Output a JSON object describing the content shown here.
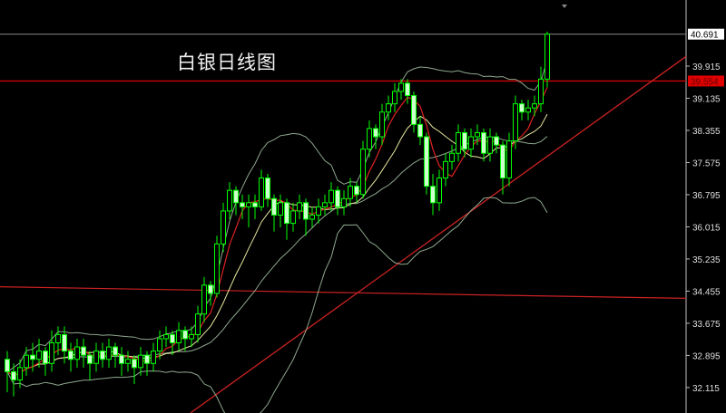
{
  "chart_data": {
    "type": "candlestick",
    "title": "白银日线图",
    "y_ticks": [
      "39.915",
      "39.135",
      "38.355",
      "37.575",
      "36.795",
      "36.015",
      "35.235",
      "34.455",
      "33.675",
      "32.895",
      "32.115"
    ],
    "ylim": [
      31.9,
      40.75
    ],
    "current_price_label": "40.691",
    "current_price": 40.691,
    "resistance_label": "39.554",
    "resistance_price": 39.554,
    "resistance_color": "#cc0000",
    "up_color": "#00ff00",
    "down_fill": "#ccffcc",
    "ma_fast_color": "#dd2222",
    "ma_slow_color": "#e8e8a0",
    "bands_color": "#8fa88f",
    "support_line": {
      "from_price": 34.56,
      "to_price": 34.28,
      "color": "#cc2222"
    },
    "trend_line": {
      "from_price": 31.5,
      "to_price": 40.15,
      "color": "#cc2222"
    },
    "candles": [
      [
        32.8,
        33.0,
        32.0,
        32.5
      ],
      [
        32.5,
        32.7,
        31.9,
        32.3
      ],
      [
        32.3,
        32.8,
        32.1,
        32.6
      ],
      [
        32.6,
        33.1,
        32.4,
        32.9
      ],
      [
        32.9,
        33.2,
        32.5,
        32.8
      ],
      [
        32.8,
        33.3,
        32.6,
        33.0
      ],
      [
        33.0,
        33.1,
        32.4,
        32.7
      ],
      [
        32.7,
        33.5,
        32.5,
        33.2
      ],
      [
        33.2,
        33.6,
        32.9,
        33.4
      ],
      [
        33.4,
        33.6,
        32.7,
        33.0
      ],
      [
        33.0,
        33.2,
        32.5,
        32.8
      ],
      [
        32.8,
        33.3,
        32.6,
        33.1
      ],
      [
        33.1,
        33.3,
        32.6,
        32.9
      ],
      [
        32.9,
        33.0,
        32.3,
        32.7
      ],
      [
        32.7,
        33.2,
        32.5,
        33.0
      ],
      [
        33.0,
        33.2,
        32.6,
        32.8
      ],
      [
        32.8,
        33.3,
        32.6,
        33.1
      ],
      [
        33.1,
        33.2,
        32.6,
        32.9
      ],
      [
        32.9,
        33.1,
        32.4,
        32.7
      ],
      [
        32.7,
        33.0,
        32.5,
        32.8
      ],
      [
        32.8,
        32.9,
        32.2,
        32.6
      ],
      [
        32.6,
        33.1,
        32.4,
        32.9
      ],
      [
        32.9,
        33.0,
        32.4,
        32.7
      ],
      [
        32.7,
        33.2,
        32.5,
        33.0
      ],
      [
        33.0,
        33.5,
        32.8,
        33.3
      ],
      [
        33.3,
        33.6,
        33.1,
        33.4
      ],
      [
        33.4,
        33.5,
        32.9,
        33.2
      ],
      [
        33.2,
        33.7,
        33.0,
        33.5
      ],
      [
        33.5,
        33.6,
        33.0,
        33.3
      ],
      [
        33.3,
        33.6,
        33.1,
        33.4
      ],
      [
        33.4,
        34.1,
        33.2,
        33.9
      ],
      [
        33.9,
        34.8,
        33.7,
        34.6
      ],
      [
        34.6,
        34.7,
        34.1,
        34.4
      ],
      [
        34.4,
        35.8,
        34.3,
        35.6
      ],
      [
        35.6,
        36.6,
        35.4,
        36.4
      ],
      [
        36.4,
        37.1,
        36.2,
        36.9
      ],
      [
        36.9,
        37.0,
        36.3,
        36.6
      ],
      [
        36.6,
        36.8,
        36.2,
        36.5
      ],
      [
        36.5,
        36.8,
        36.0,
        36.6
      ],
      [
        36.6,
        36.8,
        36.2,
        36.5
      ],
      [
        36.5,
        37.4,
        36.4,
        37.2
      ],
      [
        37.2,
        37.3,
        36.5,
        36.7
      ],
      [
        36.7,
        36.8,
        35.9,
        36.3
      ],
      [
        36.3,
        36.8,
        36.0,
        36.6
      ],
      [
        36.6,
        36.7,
        35.7,
        36.1
      ],
      [
        36.1,
        36.6,
        35.9,
        36.4
      ],
      [
        36.4,
        36.8,
        36.2,
        36.6
      ],
      [
        36.6,
        36.7,
        35.8,
        36.2
      ],
      [
        36.2,
        36.5,
        36.0,
        36.3
      ],
      [
        36.3,
        36.7,
        36.1,
        36.5
      ],
      [
        36.5,
        36.8,
        36.3,
        36.6
      ],
      [
        36.6,
        37.1,
        36.4,
        36.9
      ],
      [
        36.9,
        37.0,
        36.3,
        36.5
      ],
      [
        36.5,
        36.9,
        36.3,
        36.7
      ],
      [
        36.7,
        37.2,
        36.5,
        37.0
      ],
      [
        37.0,
        37.1,
        36.6,
        36.8
      ],
      [
        36.8,
        38.1,
        36.7,
        37.9
      ],
      [
        37.9,
        38.6,
        37.7,
        38.4
      ],
      [
        38.4,
        38.5,
        37.9,
        38.2
      ],
      [
        38.2,
        39.0,
        38.0,
        38.8
      ],
      [
        38.8,
        39.2,
        38.6,
        39.0
      ],
      [
        39.0,
        39.5,
        38.8,
        39.3
      ],
      [
        39.3,
        39.6,
        39.1,
        39.5
      ],
      [
        39.5,
        39.6,
        39.0,
        39.2
      ],
      [
        39.2,
        39.3,
        38.3,
        38.5
      ],
      [
        38.5,
        38.7,
        38.0,
        38.2
      ],
      [
        38.2,
        38.3,
        36.8,
        37.0
      ],
      [
        37.0,
        37.3,
        36.3,
        36.6
      ],
      [
        36.6,
        37.4,
        36.4,
        37.2
      ],
      [
        37.2,
        37.8,
        37.0,
        37.6
      ],
      [
        37.6,
        38.0,
        37.4,
        37.8
      ],
      [
        37.8,
        38.5,
        37.6,
        38.3
      ],
      [
        38.3,
        38.4,
        37.7,
        37.9
      ],
      [
        37.9,
        38.4,
        37.7,
        38.2
      ],
      [
        38.2,
        38.5,
        38.0,
        38.3
      ],
      [
        38.3,
        38.4,
        37.6,
        37.8
      ],
      [
        37.8,
        38.4,
        37.6,
        38.2
      ],
      [
        38.2,
        38.3,
        37.8,
        38.0
      ],
      [
        38.0,
        38.1,
        36.8,
        37.2
      ],
      [
        37.2,
        38.3,
        37.0,
        38.1
      ],
      [
        38.1,
        39.2,
        37.9,
        39.0
      ],
      [
        39.0,
        39.1,
        38.6,
        38.8
      ],
      [
        38.8,
        39.1,
        38.6,
        38.9
      ],
      [
        38.9,
        39.2,
        38.7,
        39.0
      ],
      [
        39.0,
        39.9,
        38.8,
        39.6
      ],
      [
        39.6,
        40.75,
        39.4,
        40.69
      ]
    ]
  }
}
